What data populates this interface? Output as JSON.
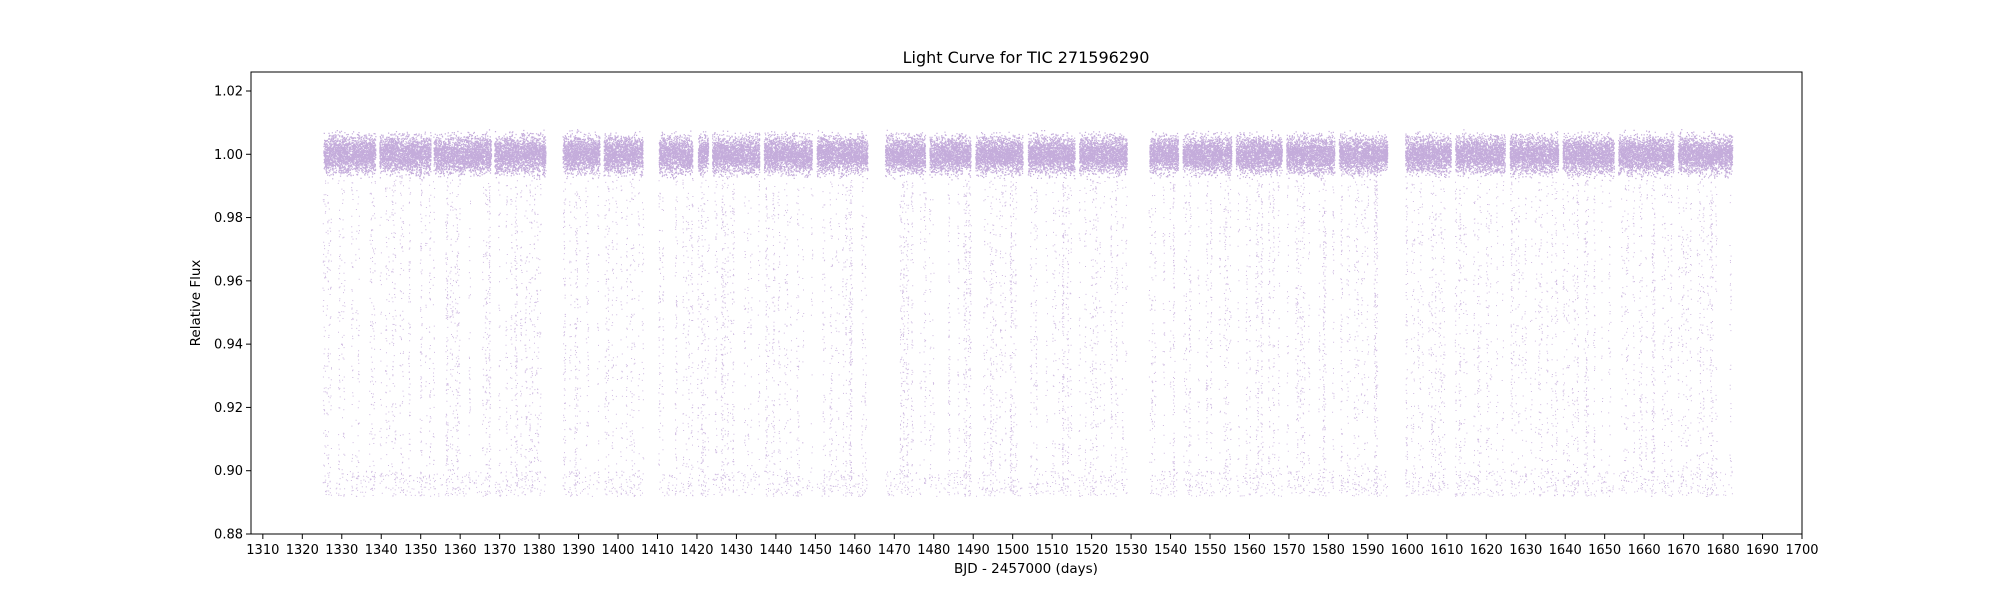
{
  "chart_data": {
    "type": "scatter",
    "title": "Light Curve for TIC 271596290",
    "xlabel": "BJD - 2457000 (days)",
    "ylabel": "Relative Flux",
    "xlim": [
      1307,
      1700
    ],
    "ylim": [
      0.88,
      1.026
    ],
    "xticks": [
      1310,
      1320,
      1330,
      1340,
      1350,
      1360,
      1370,
      1380,
      1390,
      1400,
      1410,
      1420,
      1430,
      1440,
      1450,
      1460,
      1470,
      1480,
      1490,
      1500,
      1510,
      1520,
      1530,
      1540,
      1550,
      1560,
      1570,
      1580,
      1590,
      1600,
      1610,
      1620,
      1630,
      1640,
      1650,
      1660,
      1670,
      1680,
      1690,
      1700
    ],
    "yticks": [
      0.88,
      0.9,
      0.92,
      0.94,
      0.96,
      0.98,
      1.0,
      1.02
    ],
    "ytick_labels": [
      "0.88",
      "0.90",
      "0.92",
      "0.94",
      "0.96",
      "0.98",
      "1.00",
      "1.02"
    ],
    "grid": false,
    "color": "#9467bd",
    "baseline_flux": 1.0,
    "eclipse_depth_flux": 0.892,
    "segments": [
      {
        "start": 1325.3,
        "end": 1338.5
      },
      {
        "start": 1339.5,
        "end": 1352.5
      },
      {
        "start": 1353.2,
        "end": 1367.8
      },
      {
        "start": 1368.6,
        "end": 1381.6
      },
      {
        "start": 1385.9,
        "end": 1395.3
      },
      {
        "start": 1396.3,
        "end": 1406.2
      },
      {
        "start": 1410.3,
        "end": 1418.8
      },
      {
        "start": 1420.2,
        "end": 1422.8
      },
      {
        "start": 1423.8,
        "end": 1435.8
      },
      {
        "start": 1436.9,
        "end": 1449.1
      },
      {
        "start": 1450.3,
        "end": 1463.2
      },
      {
        "start": 1467.6,
        "end": 1477.8
      },
      {
        "start": 1478.9,
        "end": 1489.3
      },
      {
        "start": 1490.5,
        "end": 1502.5
      },
      {
        "start": 1503.8,
        "end": 1515.7
      },
      {
        "start": 1516.8,
        "end": 1528.9
      },
      {
        "start": 1534.6,
        "end": 1541.9
      },
      {
        "start": 1543.0,
        "end": 1555.4
      },
      {
        "start": 1556.5,
        "end": 1568.2
      },
      {
        "start": 1569.3,
        "end": 1581.5
      },
      {
        "start": 1582.6,
        "end": 1594.9
      },
      {
        "start": 1599.4,
        "end": 1611.0
      },
      {
        "start": 1612.1,
        "end": 1624.7
      },
      {
        "start": 1625.9,
        "end": 1638.2
      },
      {
        "start": 1639.3,
        "end": 1652.3
      },
      {
        "start": 1653.4,
        "end": 1667.4
      },
      {
        "start": 1668.5,
        "end": 1682.3
      }
    ]
  }
}
